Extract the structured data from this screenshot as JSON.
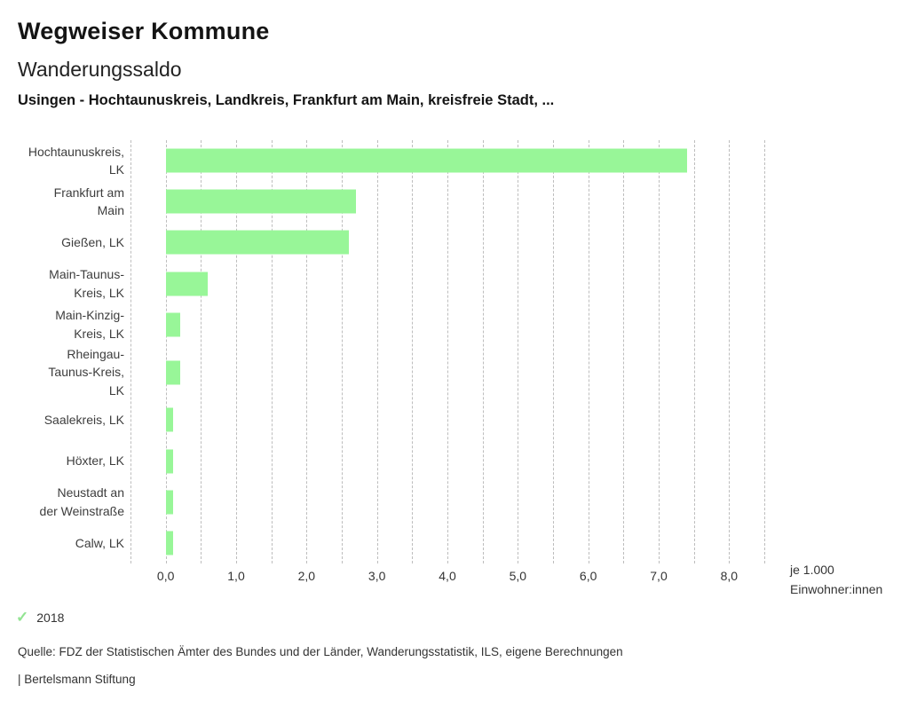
{
  "header": {
    "app_title": "Wegweiser Kommune"
  },
  "chart_data": {
    "type": "bar",
    "orientation": "horizontal",
    "title": "Wanderungssaldo",
    "subtitle": "Usingen - Hochtaunuskreis, Landkreis, Frankfurt am Main, kreisfreie Stadt, ...",
    "categories": [
      "Hochtaunuskreis,\nLK",
      "Frankfurt am\nMain",
      "Gießen, LK",
      "Main-Taunus-\nKreis, LK",
      "Main-Kinzig-\nKreis, LK",
      "Rheingau-\nTaunus-Kreis,\nLK",
      "Saalekreis, LK",
      "Höxter, LK",
      "Neustadt an\nder Weinstraße",
      "Calw, LK"
    ],
    "values": [
      7.4,
      2.7,
      2.6,
      0.6,
      0.2,
      0.2,
      0.1,
      0.1,
      0.1,
      0.1
    ],
    "x_ticks": [
      "0,0",
      "1,0",
      "2,0",
      "3,0",
      "4,0",
      "5,0",
      "6,0",
      "7,0",
      "8,0"
    ],
    "x_tick_values": [
      0,
      1,
      2,
      3,
      4,
      5,
      6,
      7,
      8
    ],
    "xlim": [
      -0.5,
      8.5
    ],
    "grid_step": 0.5,
    "grid": "vertical-dashed",
    "unit_label": "je 1.000\nEinwohner:innen",
    "bar_color": "#98f698",
    "gridline_color": "#bdbdbd",
    "legend_year": "2018",
    "legend_position": "bottom-left"
  },
  "icons": {
    "year_check": "✓",
    "check_color": "#92e492"
  },
  "footer": {
    "source": "Quelle: FDZ der Statistischen Ämter des Bundes und der Länder, Wanderungsstatistik, ILS, eigene Berechnungen",
    "brand": "| Bertelsmann Stiftung"
  }
}
